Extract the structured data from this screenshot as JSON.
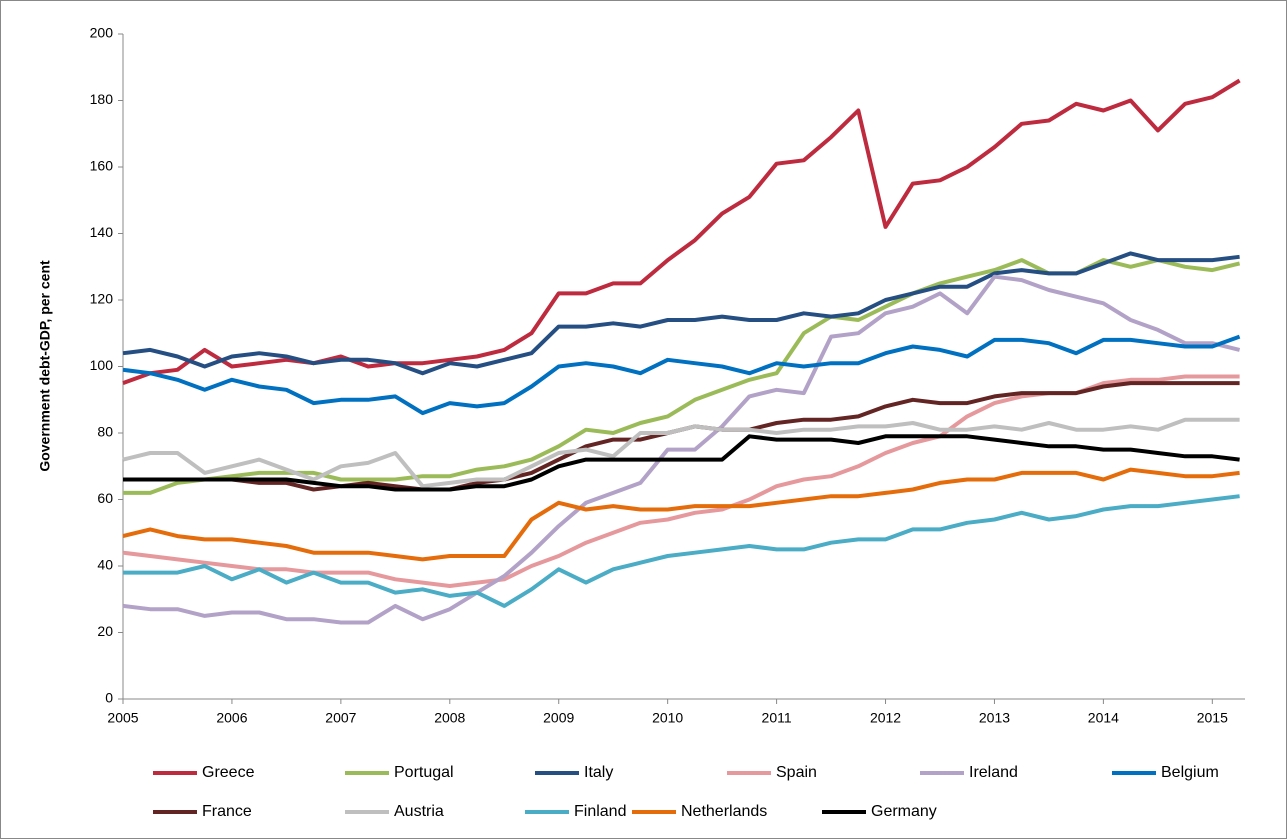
{
  "chart_data": {
    "type": "line",
    "y_label": "Government debt-GDP, per cent",
    "x": [
      2005,
      2005.25,
      2005.5,
      2005.75,
      2006,
      2006.25,
      2006.5,
      2006.75,
      2007,
      2007.25,
      2007.5,
      2007.75,
      2008,
      2008.25,
      2008.5,
      2008.75,
      2009,
      2009.25,
      2009.5,
      2009.75,
      2010,
      2010.25,
      2010.5,
      2010.75,
      2011,
      2011.25,
      2011.5,
      2011.75,
      2012,
      2012.25,
      2012.5,
      2012.75,
      2013,
      2013.25,
      2013.5,
      2013.75,
      2014,
      2014.25,
      2014.5,
      2014.75,
      2015,
      2015.25
    ],
    "xlim": [
      2005,
      2015.3
    ],
    "xticks": [
      2005,
      2006,
      2007,
      2008,
      2009,
      2010,
      2011,
      2012,
      2013,
      2014,
      2015
    ],
    "ylim": [
      0,
      200
    ],
    "yticks": [
      0,
      20,
      40,
      60,
      80,
      100,
      120,
      140,
      160,
      180,
      200
    ],
    "series": [
      {
        "name": "Greece",
        "color": "#be2a3e",
        "values": [
          95,
          98,
          99,
          105,
          100,
          101,
          102,
          101,
          103,
          100,
          101,
          101,
          102,
          103,
          105,
          110,
          122,
          122,
          125,
          125,
          132,
          138,
          146,
          151,
          161,
          162,
          169,
          177,
          142,
          155,
          156,
          160,
          166,
          173,
          174,
          179,
          177,
          180,
          171,
          179,
          181,
          186
        ]
      },
      {
        "name": "Portugal",
        "color": "#9bbb59",
        "values": [
          62,
          62,
          65,
          66,
          67,
          68,
          68,
          68,
          66,
          66,
          66,
          67,
          67,
          69,
          70,
          72,
          76,
          81,
          80,
          83,
          85,
          90,
          93,
          96,
          98,
          110,
          115,
          114,
          118,
          122,
          125,
          127,
          129,
          132,
          128,
          128,
          132,
          130,
          132,
          130,
          129,
          131
        ]
      },
      {
        "name": "Italy",
        "color": "#254f82",
        "values": [
          104,
          105,
          103,
          100,
          103,
          104,
          103,
          101,
          102,
          102,
          101,
          98,
          101,
          100,
          102,
          104,
          112,
          112,
          113,
          112,
          114,
          114,
          115,
          114,
          114,
          116,
          115,
          116,
          120,
          122,
          124,
          124,
          128,
          129,
          128,
          128,
          131,
          134,
          132,
          132,
          132,
          133
        ]
      },
      {
        "name": "Spain",
        "color": "#e6999c",
        "values": [
          44,
          43,
          42,
          41,
          40,
          39,
          39,
          38,
          38,
          38,
          36,
          35,
          34,
          35,
          36,
          40,
          43,
          47,
          50,
          53,
          54,
          56,
          57,
          60,
          64,
          66,
          67,
          70,
          74,
          77,
          79,
          85,
          89,
          91,
          92,
          92,
          95,
          96,
          96,
          97,
          97,
          97
        ]
      },
      {
        "name": "Ireland",
        "color": "#b3a2c7",
        "values": [
          28,
          27,
          27,
          25,
          26,
          26,
          24,
          24,
          23,
          23,
          28,
          24,
          27,
          32,
          37,
          44,
          52,
          59,
          62,
          65,
          75,
          75,
          82,
          91,
          93,
          92,
          109,
          110,
          116,
          118,
          122,
          116,
          127,
          126,
          123,
          121,
          119,
          114,
          111,
          107,
          107,
          105
        ]
      },
      {
        "name": "Belgium",
        "color": "#0070c0",
        "values": [
          99,
          98,
          96,
          93,
          96,
          94,
          93,
          89,
          90,
          90,
          91,
          86,
          89,
          88,
          89,
          94,
          100,
          101,
          100,
          98,
          102,
          101,
          100,
          98,
          101,
          100,
          101,
          101,
          104,
          106,
          105,
          103,
          108,
          108,
          107,
          104,
          108,
          108,
          107,
          106,
          106,
          109
        ]
      },
      {
        "name": "France",
        "color": "#632523",
        "values": [
          66,
          66,
          66,
          66,
          66,
          65,
          65,
          63,
          64,
          65,
          64,
          63,
          63,
          65,
          66,
          68,
          72,
          76,
          78,
          78,
          80,
          82,
          81,
          81,
          83,
          84,
          84,
          85,
          88,
          90,
          89,
          89,
          91,
          92,
          92,
          92,
          94,
          95,
          95,
          95,
          95,
          95
        ]
      },
      {
        "name": "Austria",
        "color": "#bfbfbf",
        "values": [
          72,
          74,
          74,
          68,
          70,
          72,
          69,
          66,
          70,
          71,
          74,
          64,
          65,
          66,
          66,
          70,
          74,
          75,
          73,
          80,
          80,
          82,
          81,
          81,
          80,
          81,
          81,
          82,
          82,
          83,
          81,
          81,
          82,
          81,
          83,
          81,
          81,
          82,
          81,
          84,
          84,
          84
        ]
      },
      {
        "name": "Finland",
        "color": "#4bacc6",
        "values": [
          38,
          38,
          38,
          40,
          36,
          39,
          35,
          38,
          35,
          35,
          32,
          33,
          31,
          32,
          28,
          33,
          39,
          35,
          39,
          41,
          43,
          44,
          45,
          46,
          45,
          45,
          47,
          48,
          48,
          51,
          51,
          53,
          54,
          56,
          54,
          55,
          57,
          58,
          58,
          59,
          60,
          61
        ]
      },
      {
        "name": "Netherlands",
        "color": "#e46c0a",
        "values": [
          49,
          51,
          49,
          48,
          48,
          47,
          46,
          44,
          44,
          44,
          43,
          42,
          43,
          43,
          43,
          54,
          59,
          57,
          58,
          57,
          57,
          58,
          58,
          58,
          59,
          60,
          61,
          61,
          62,
          63,
          65,
          66,
          66,
          68,
          68,
          68,
          66,
          69,
          68,
          67,
          67,
          68
        ]
      },
      {
        "name": "Germany",
        "color": "#000000",
        "values": [
          66,
          66,
          66,
          66,
          66,
          66,
          66,
          65,
          64,
          64,
          63,
          63,
          63,
          64,
          64,
          66,
          70,
          72,
          72,
          72,
          72,
          72,
          72,
          79,
          78,
          78,
          78,
          77,
          79,
          79,
          79,
          79,
          78,
          77,
          76,
          76,
          75,
          75,
          74,
          73,
          73,
          72
        ]
      }
    ]
  }
}
